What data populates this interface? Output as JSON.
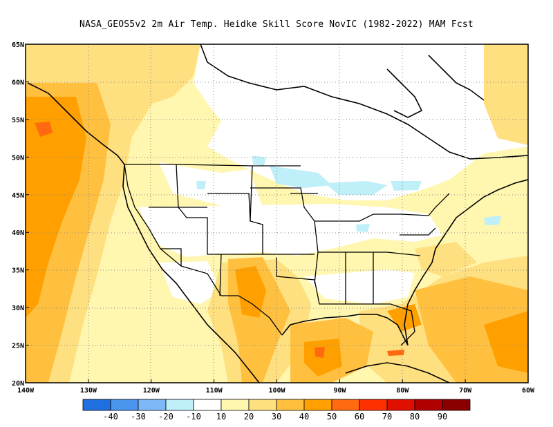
{
  "title": "NASA_GEOS5v2  2m Air Temp. Heidke Skill Score NovIC (1982-2022) MAM Fcst",
  "map": {
    "lon_range": [
      -140,
      -60
    ],
    "lat_range": [
      20,
      65
    ],
    "lat_labels": [
      "65N",
      "60N",
      "55N",
      "50N",
      "45N",
      "40N",
      "35N",
      "30N",
      "25N",
      "20N"
    ],
    "lon_labels": [
      "140W",
      "130W",
      "120W",
      "110W",
      "100W",
      "90W",
      "80W",
      "70W",
      "60W"
    ],
    "gridlines": "dotted",
    "features": [
      "coastlines",
      "US state boundaries",
      "Canada-US border",
      "Mexico border"
    ]
  },
  "colorbar": {
    "colors": [
      "#1f6fe0",
      "#4a95ee",
      "#7fb8f6",
      "#bfeff8",
      "#ffffff",
      "#fff6b0",
      "#ffe080",
      "#ffc040",
      "#ffa000",
      "#ff6a10",
      "#ff3000",
      "#e01000",
      "#b00000",
      "#8a0000"
    ],
    "labels": [
      "-40",
      "-30",
      "-20",
      "-10",
      "10",
      "20",
      "30",
      "40",
      "50",
      "60",
      "70",
      "80",
      "90"
    ]
  }
}
